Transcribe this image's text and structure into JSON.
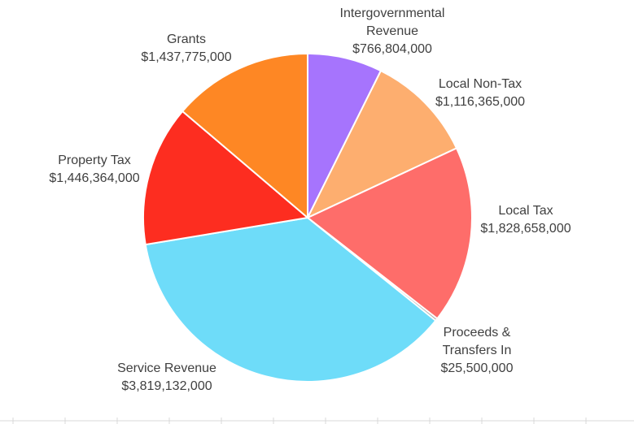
{
  "chart_data": {
    "type": "pie",
    "title": "",
    "start_angle_deg": 0,
    "direction": "clockwise",
    "slices": [
      {
        "name": "Intergovernmental Revenue",
        "label_lines": [
          "Intergovernmental",
          "Revenue"
        ],
        "value_label": "$766,804,000",
        "value": 766804000,
        "color": "#a674fd"
      },
      {
        "name": "Local Non-Tax",
        "label_lines": [
          "Local Non-Tax"
        ],
        "value_label": "$1,116,365,000",
        "value": 1116365000,
        "color": "#fdae6f"
      },
      {
        "name": "Local Tax",
        "label_lines": [
          "Local Tax"
        ],
        "value_label": "$1,828,658,000",
        "value": 1828658000,
        "color": "#fe6d6a"
      },
      {
        "name": "Proceeds & Transfers In",
        "label_lines": [
          "Proceeds &",
          "Transfers In"
        ],
        "value_label": "$25,500,000",
        "value": 25500000,
        "color": "#a8a8a8"
      },
      {
        "name": "Service Revenue",
        "label_lines": [
          "Service Revenue"
        ],
        "value_label": "$3,819,132,000",
        "value": 3819132000,
        "color": "#6edcf9"
      },
      {
        "name": "Property Tax",
        "label_lines": [
          "Property Tax"
        ],
        "value_label": "$1,446,364,000",
        "value": 1446364000,
        "color": "#fd2d20"
      },
      {
        "name": "Grants",
        "label_lines": [
          "Grants"
        ],
        "value_label": "$1,437,775,000",
        "value": 1437775000,
        "color": "#fe8724"
      }
    ],
    "legend": "none"
  }
}
